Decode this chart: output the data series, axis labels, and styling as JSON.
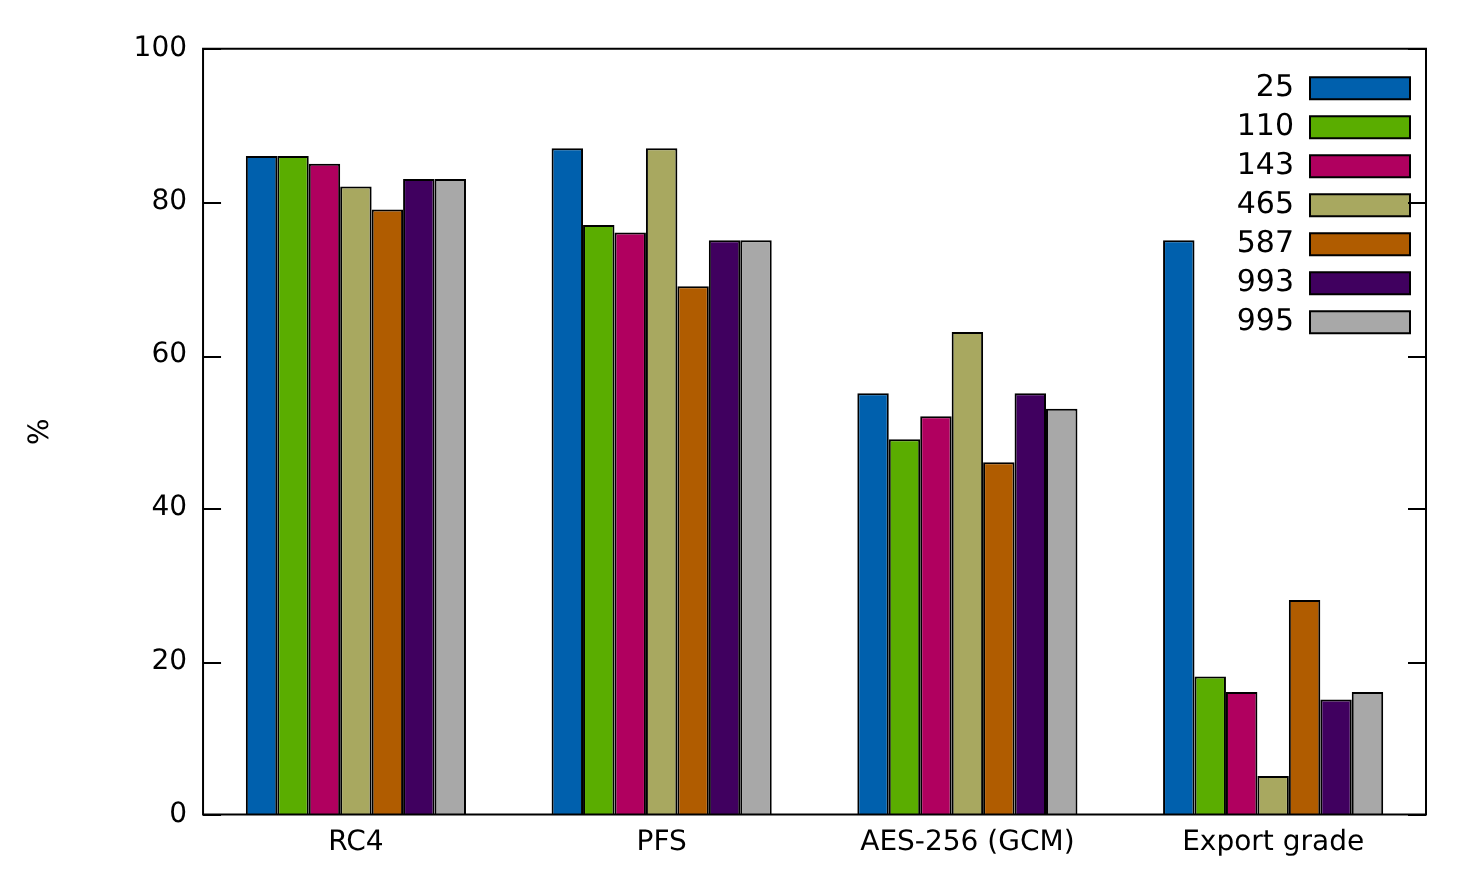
{
  "chart_data": {
    "type": "bar",
    "ylabel": "%",
    "categories": [
      "RC4",
      "PFS",
      "AES-256 (GCM)",
      "Export grade"
    ],
    "series": [
      {
        "name": "25",
        "color": "#0060ad",
        "values": [
          86,
          87,
          55,
          75
        ]
      },
      {
        "name": "110",
        "color": "#5aad00",
        "values": [
          86,
          77,
          49,
          18
        ]
      },
      {
        "name": "143",
        "color": "#b0005f",
        "values": [
          85,
          76,
          52,
          16
        ]
      },
      {
        "name": "465",
        "color": "#a8a860",
        "values": [
          82,
          87,
          63,
          5
        ]
      },
      {
        "name": "587",
        "color": "#b05c00",
        "values": [
          79,
          69,
          46,
          28
        ]
      },
      {
        "name": "993",
        "color": "#40005f",
        "values": [
          83,
          75,
          55,
          15
        ]
      },
      {
        "name": "995",
        "color": "#a8a8a8",
        "values": [
          83,
          75,
          53,
          16
        ]
      }
    ],
    "ylim": [
      0,
      100
    ],
    "yticks": [
      0,
      20,
      40,
      60,
      80,
      100
    ],
    "grid": false,
    "legend": "top right"
  }
}
